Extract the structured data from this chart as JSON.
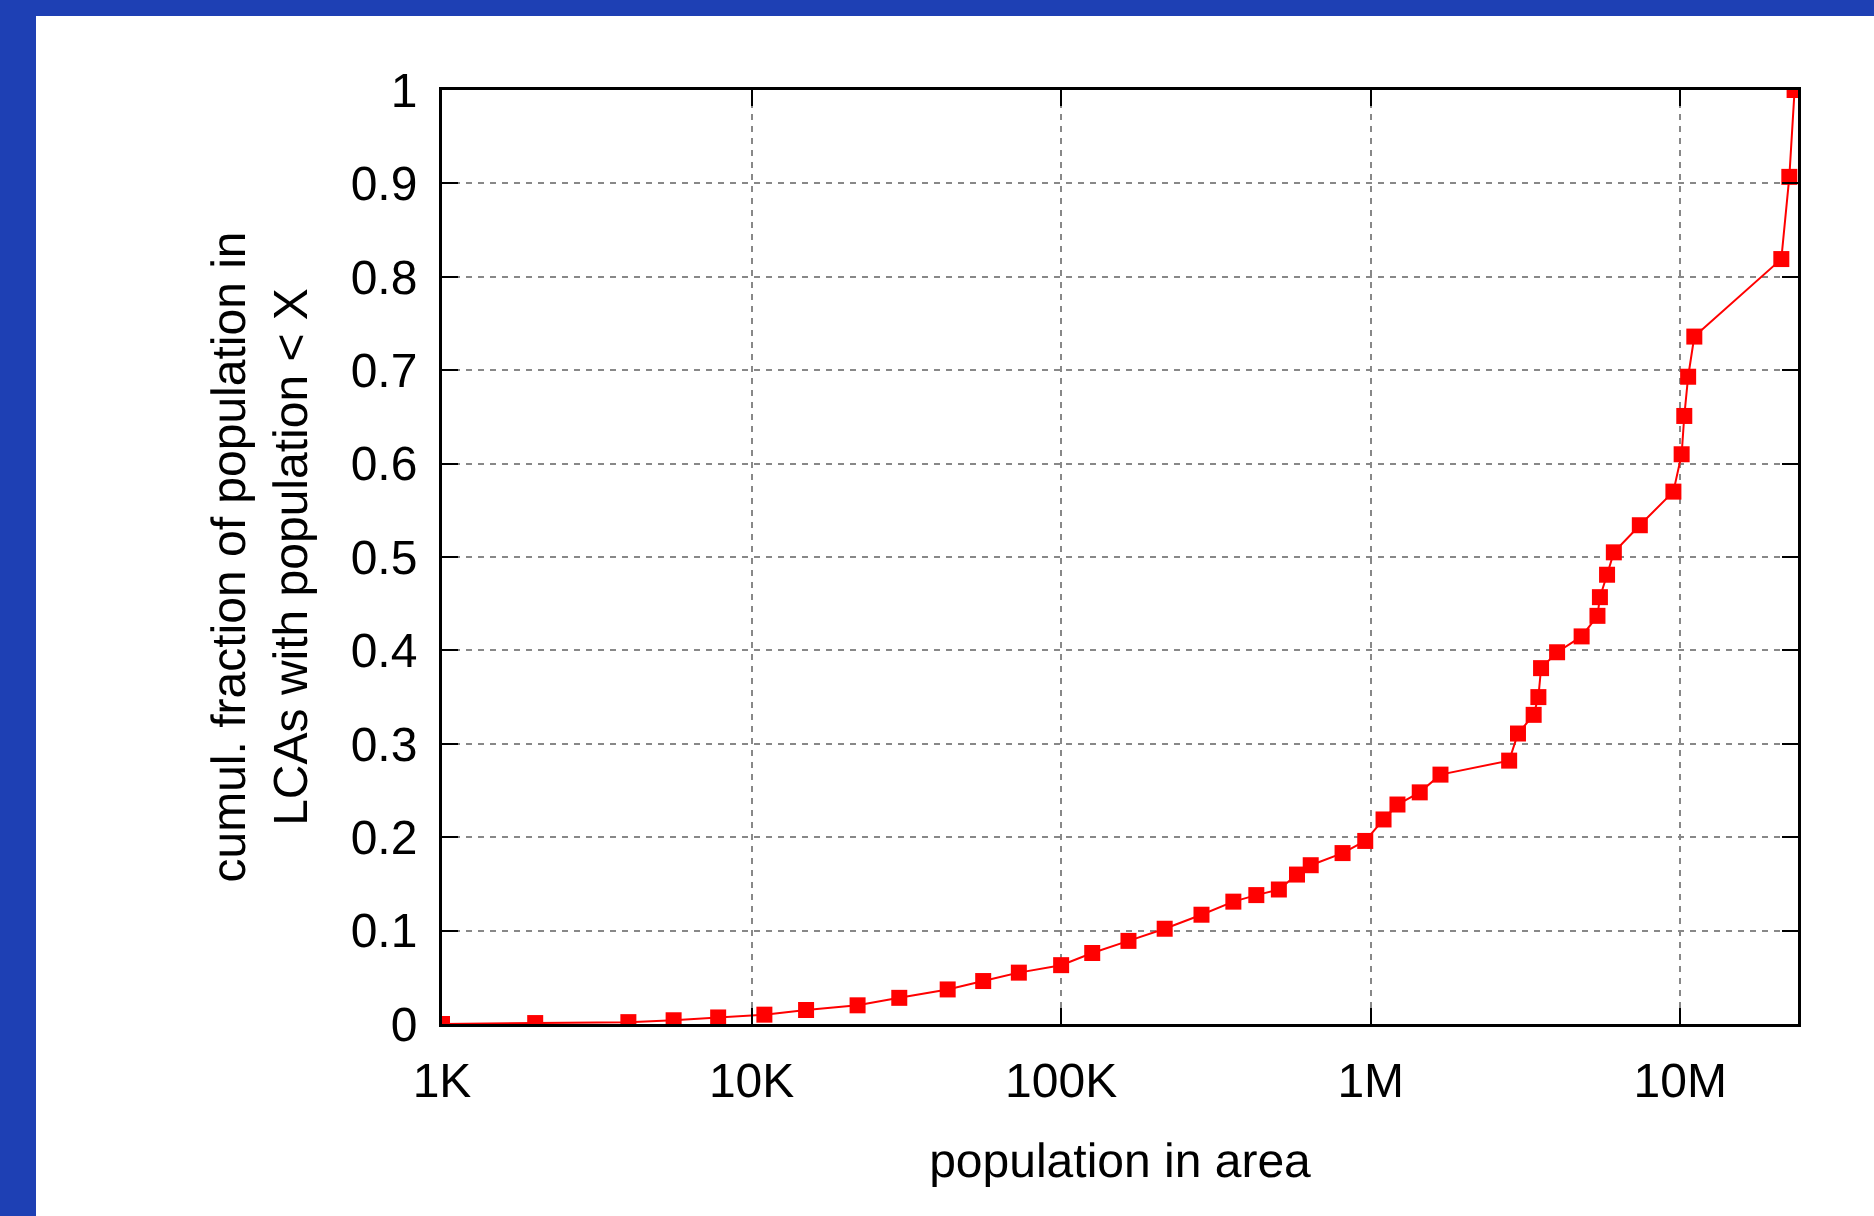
{
  "chart_data": {
    "type": "line",
    "xlabel": "population in area",
    "ylabel": "cumul. fraction of population in\nLCAs with population < X",
    "x": [
      1000,
      2000,
      4000,
      5600,
      7800,
      11000,
      15000,
      22000,
      30000,
      43000,
      56000,
      73000,
      100000,
      126000,
      165000,
      216000,
      284000,
      360000,
      427000,
      505000,
      578000,
      640000,
      811000,
      960000,
      1100000,
      1220000,
      1440000,
      1680000,
      2800000,
      2990000,
      3360000,
      3480000,
      3550000,
      4000000,
      4800000,
      5400000,
      5500000,
      5800000,
      6100000,
      7400000,
      9500000,
      10100000,
      10300000,
      10600000,
      11100000,
      21200000,
      22500000,
      23400000
    ],
    "series": [
      {
        "color": "#ff0000",
        "values": [
          0,
          0.001,
          0.002,
          0.004,
          0.007,
          0.01,
          0.015,
          0.02,
          0.028,
          0.037,
          0.046,
          0.055,
          0.063,
          0.076,
          0.089,
          0.102,
          0.117,
          0.131,
          0.138,
          0.144,
          0.16,
          0.17,
          0.183,
          0.196,
          0.219,
          0.235,
          0.248,
          0.267,
          0.282,
          0.311,
          0.331,
          0.35,
          0.381,
          0.398,
          0.415,
          0.437,
          0.457,
          0.481,
          0.505,
          0.534,
          0.57,
          0.61,
          0.651,
          0.693,
          0.736,
          0.819,
          0.907,
          1.0
        ]
      }
    ],
    "log": "x",
    "xlim": [
      1000,
      24000000
    ],
    "xticks": [
      {
        "value": 1000,
        "label": "1K"
      },
      {
        "value": 10000,
        "label": "10K"
      },
      {
        "value": 100000,
        "label": "100K"
      },
      {
        "value": 1000000,
        "label": "1M"
      },
      {
        "value": 10000000,
        "label": "10M"
      }
    ],
    "ylim": [
      0,
      1
    ],
    "yticks": [
      0,
      0.1,
      0.2,
      0.3,
      0.4,
      0.5,
      0.6,
      0.7,
      0.8,
      0.9,
      1
    ],
    "grid": true,
    "marker": "square",
    "line_style": "solid"
  }
}
